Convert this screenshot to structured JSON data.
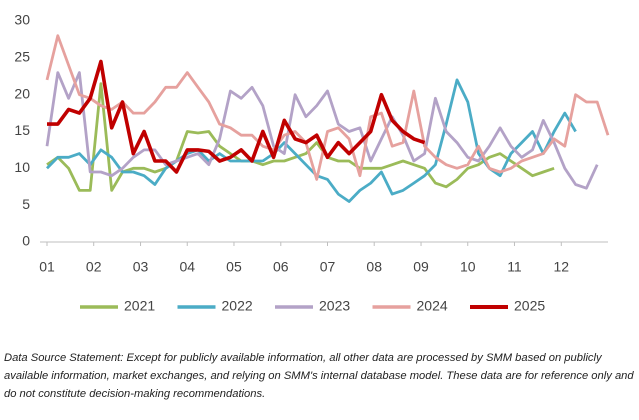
{
  "chart_data": {
    "type": "line",
    "x": [
      1,
      2,
      3,
      4,
      5,
      6,
      7,
      8,
      9,
      10,
      11,
      12,
      13,
      14,
      15,
      16,
      17,
      18,
      19,
      20,
      21,
      22,
      23,
      24,
      25,
      26,
      27,
      28,
      29,
      30,
      31,
      32,
      33,
      34,
      35,
      36,
      37,
      38,
      39,
      40,
      41,
      42,
      43,
      44,
      45,
      46,
      47,
      48,
      49,
      50,
      51,
      52,
      53
    ],
    "xlim": [
      1,
      53
    ],
    "xticks": [
      {
        "value": 1,
        "label": "01"
      },
      {
        "value": 5.33,
        "label": "02"
      },
      {
        "value": 9.67,
        "label": "03"
      },
      {
        "value": 14,
        "label": "04"
      },
      {
        "value": 18.33,
        "label": "05"
      },
      {
        "value": 22.67,
        "label": "06"
      },
      {
        "value": 27,
        "label": "07"
      },
      {
        "value": 31.33,
        "label": "08"
      },
      {
        "value": 35.67,
        "label": "09"
      },
      {
        "value": 40,
        "label": "10"
      },
      {
        "value": 44.33,
        "label": "11"
      },
      {
        "value": 48.67,
        "label": "12"
      }
    ],
    "ylim": [
      0,
      30
    ],
    "yticks": [
      0,
      5,
      10,
      15,
      20,
      25,
      30
    ],
    "grid": false,
    "legend": "bottom",
    "series": [
      {
        "name": "2021",
        "color": "#9bbb59",
        "values": [
          10.5,
          11.5,
          10,
          7,
          7,
          21.5,
          7,
          9.5,
          10,
          10,
          9.5,
          10,
          11,
          15,
          14.8,
          15,
          13,
          12,
          11,
          11,
          10.5,
          11,
          11,
          11.5,
          12,
          13.5,
          11.5,
          11,
          11,
          10,
          10,
          10,
          10.5,
          11,
          10.5,
          10,
          8,
          7.5,
          8.5,
          10,
          10.5,
          11.5,
          12,
          11,
          10,
          9,
          9.5,
          10,
          null,
          null,
          null,
          null,
          null
        ]
      },
      {
        "name": "2022",
        "color": "#4bacc6",
        "values": [
          10,
          11.5,
          11.5,
          12,
          10.5,
          12.5,
          11.5,
          9.5,
          9.5,
          9,
          7.8,
          10,
          11,
          12,
          12.5,
          11,
          12,
          11,
          11,
          11,
          11,
          12,
          13.5,
          12,
          10.5,
          9,
          8.5,
          6.5,
          5.5,
          7,
          8,
          9.5,
          6.5,
          7,
          8,
          9,
          10.5,
          16,
          22,
          19,
          12,
          10,
          9,
          12,
          13.5,
          15,
          12,
          15,
          17.5,
          15,
          null,
          null,
          null
        ]
      },
      {
        "name": "2023",
        "color": "#b3a2c7",
        "values": [
          13,
          23,
          19.5,
          23,
          9.5,
          9.5,
          9,
          10,
          11.5,
          12.5,
          12.5,
          10.5,
          11,
          11.5,
          12,
          10.5,
          14,
          20.5,
          19.5,
          21,
          18.5,
          13,
          12,
          20,
          17,
          18.5,
          20.5,
          16,
          15,
          15.5,
          11,
          14,
          17,
          14.5,
          11,
          12,
          19.5,
          15,
          13.5,
          11.5,
          11,
          13,
          15.5,
          13,
          11.5,
          12.5,
          16.5,
          13.5,
          10,
          7.8,
          7.3,
          10.5,
          null
        ]
      },
      {
        "name": "2024",
        "color": "#e6a19e",
        "values": [
          22,
          28,
          24,
          20,
          19.5,
          18.5,
          18,
          19,
          17.5,
          17.5,
          19,
          21,
          21,
          23,
          21,
          19,
          16,
          15.5,
          14.5,
          14.5,
          13,
          12.5,
          14.5,
          15,
          13.5,
          8.5,
          15,
          15.5,
          14,
          9,
          17,
          17.5,
          13,
          13.5,
          20.5,
          13,
          11.5,
          10.5,
          10,
          10.5,
          13,
          10,
          9.5,
          10,
          11,
          11.5,
          12,
          14,
          13,
          20,
          19,
          19,
          14.5
        ]
      },
      {
        "name": "2025",
        "color": "#c00000",
        "values": [
          16,
          16,
          18,
          17.5,
          19.5,
          24.5,
          15.5,
          19,
          12,
          15,
          11,
          11,
          9.5,
          12.5,
          12.5,
          12.3,
          11,
          11.5,
          12.5,
          11,
          15,
          11.5,
          16.5,
          14,
          13.5,
          14.5,
          11.5,
          13.5,
          12,
          13.5,
          15,
          20,
          16.5,
          15,
          14,
          13.5,
          null,
          null,
          null,
          null,
          null,
          null,
          null,
          null,
          null,
          null,
          null,
          null,
          null,
          null,
          null,
          null,
          null
        ]
      }
    ],
    "note": "Data Source Statement: Except for publicly available information, all other data are processed by SMM based on publicly available information, market exchanges, and relying on SMM's internal database model. These data are for reference only and do not constitute decision-making recommendations."
  }
}
